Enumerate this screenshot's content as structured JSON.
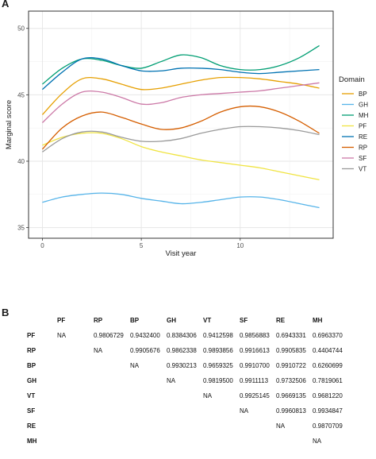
{
  "panel_a_label": "A",
  "panel_b_label": "B",
  "chart_data": {
    "type": "line",
    "title": "",
    "xlabel": "Visit year",
    "ylabel": "Marginal score",
    "xlim": [
      -0.7,
      14.7
    ],
    "ylim": [
      34.2,
      51.3
    ],
    "x_ticks": [
      0,
      5,
      10
    ],
    "y_ticks": [
      35,
      40,
      45,
      50
    ],
    "grid": true,
    "legend_title": "Domain",
    "legend_position": "right",
    "x": [
      0,
      1,
      2,
      3,
      4,
      5,
      6,
      7,
      8,
      9,
      10,
      11,
      12,
      13,
      14
    ],
    "series": [
      {
        "name": "BP",
        "color": "#E69F00",
        "values": [
          43.5,
          45.1,
          46.2,
          46.2,
          45.8,
          45.4,
          45.5,
          45.8,
          46.1,
          46.3,
          46.3,
          46.2,
          46.0,
          45.8,
          45.5
        ]
      },
      {
        "name": "GH",
        "color": "#56B4E9",
        "values": [
          36.9,
          37.3,
          37.5,
          37.6,
          37.5,
          37.2,
          37.0,
          36.8,
          36.9,
          37.1,
          37.3,
          37.3,
          37.1,
          36.8,
          36.5
        ]
      },
      {
        "name": "MH",
        "color": "#009E73",
        "values": [
          45.8,
          47.0,
          47.7,
          47.6,
          47.2,
          47.0,
          47.5,
          48.0,
          47.8,
          47.2,
          46.9,
          46.9,
          47.2,
          47.8,
          48.7
        ]
      },
      {
        "name": "PF",
        "color": "#F0E442",
        "values": [
          41.2,
          41.8,
          42.1,
          42.1,
          41.7,
          41.1,
          40.7,
          40.4,
          40.1,
          39.9,
          39.7,
          39.5,
          39.2,
          38.9,
          38.6
        ]
      },
      {
        "name": "RE",
        "color": "#0072B2",
        "values": [
          45.4,
          46.7,
          47.7,
          47.7,
          47.2,
          46.8,
          46.8,
          47.0,
          47.0,
          46.9,
          46.7,
          46.6,
          46.7,
          46.8,
          46.9
        ]
      },
      {
        "name": "RP",
        "color": "#D55E00",
        "values": [
          40.9,
          42.5,
          43.4,
          43.7,
          43.3,
          42.8,
          42.4,
          42.5,
          43.0,
          43.7,
          44.1,
          44.1,
          43.7,
          43.0,
          42.1
        ]
      },
      {
        "name": "SF",
        "color": "#CC79A7",
        "values": [
          42.9,
          44.3,
          45.2,
          45.2,
          44.8,
          44.3,
          44.4,
          44.8,
          45.0,
          45.1,
          45.2,
          45.3,
          45.5,
          45.7,
          45.9
        ]
      },
      {
        "name": "VT",
        "color": "#999999",
        "values": [
          40.7,
          41.7,
          42.2,
          42.2,
          41.8,
          41.5,
          41.5,
          41.7,
          42.1,
          42.4,
          42.6,
          42.6,
          42.5,
          42.3,
          42.0
        ]
      }
    ]
  },
  "table": {
    "columns": [
      "PF",
      "RP",
      "BP",
      "GH",
      "VT",
      "SF",
      "RE",
      "MH"
    ],
    "rows": [
      {
        "label": "PF",
        "cells": [
          "NA",
          "0.9806729",
          "0.9432400",
          "0.8384306",
          "0.9412598",
          "0.9856883",
          "0.6943331",
          "0.6963370"
        ]
      },
      {
        "label": "RP",
        "cells": [
          "",
          "NA",
          "0.9905676",
          "0.9862338",
          "0.9893856",
          "0.9916613",
          "0.9905835",
          "0.4404744"
        ]
      },
      {
        "label": "BP",
        "cells": [
          "",
          "",
          "NA",
          "0.9930213",
          "0.9659325",
          "0.9910700",
          "0.9910722",
          "0.6260699"
        ]
      },
      {
        "label": "GH",
        "cells": [
          "",
          "",
          "",
          "NA",
          "0.9819500",
          "0.9911113",
          "0.9732506",
          "0.7819061"
        ]
      },
      {
        "label": "VT",
        "cells": [
          "",
          "",
          "",
          "",
          "NA",
          "0.9925145",
          "0.9669135",
          "0.9681220"
        ]
      },
      {
        "label": "SF",
        "cells": [
          "",
          "",
          "",
          "",
          "",
          "NA",
          "0.9960813",
          "0.9934847"
        ]
      },
      {
        "label": "RE",
        "cells": [
          "",
          "",
          "",
          "",
          "",
          "",
          "NA",
          "0.9870709"
        ]
      },
      {
        "label": "MH",
        "cells": [
          "",
          "",
          "",
          "",
          "",
          "",
          "",
          "NA"
        ]
      }
    ]
  }
}
